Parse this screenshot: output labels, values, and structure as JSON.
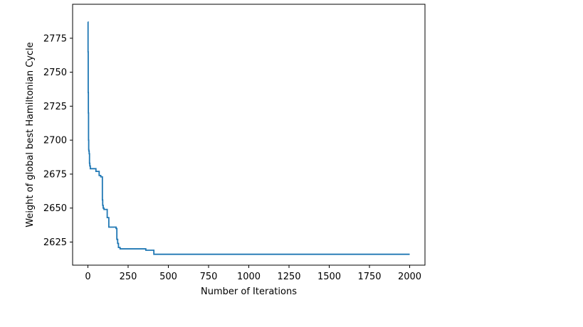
{
  "chart_data": {
    "type": "line",
    "title": "",
    "xlabel": "Number of Iterations",
    "ylabel": "Weight of global best Hamiltonian Cycle",
    "xlim": [
      -95,
      2095
    ],
    "ylim": [
      2608,
      2800
    ],
    "xticks": [
      0,
      250,
      500,
      750,
      1000,
      1250,
      1500,
      1750,
      2000
    ],
    "yticks": [
      2625,
      2650,
      2675,
      2700,
      2725,
      2750,
      2775
    ],
    "grid": false,
    "line_color": "#1f77b4",
    "series": [
      {
        "step": true,
        "x": [
          0,
          1,
          2,
          3,
          4,
          5,
          6,
          8,
          10,
          12,
          15,
          20,
          40,
          50,
          65,
          70,
          80,
          90,
          92,
          95,
          100,
          105,
          120,
          130,
          150,
          170,
          172,
          175,
          180,
          185,
          190,
          200,
          250,
          300,
          350,
          360,
          400,
          410,
          420,
          500,
          750,
          1000,
          1250,
          1500,
          1750,
          2000
        ],
        "y": [
          2787,
          2765,
          2735,
          2720,
          2700,
          2693,
          2692,
          2690,
          2683,
          2681,
          2679,
          2679,
          2679,
          2677,
          2677,
          2674,
          2673,
          2656,
          2652,
          2650,
          2649,
          2649,
          2643,
          2636,
          2636,
          2636,
          2636,
          2635,
          2627,
          2624,
          2621,
          2620,
          2620,
          2620,
          2620,
          2619,
          2619,
          2616,
          2616,
          2616,
          2616,
          2616,
          2616,
          2616,
          2616,
          2616
        ]
      }
    ]
  }
}
